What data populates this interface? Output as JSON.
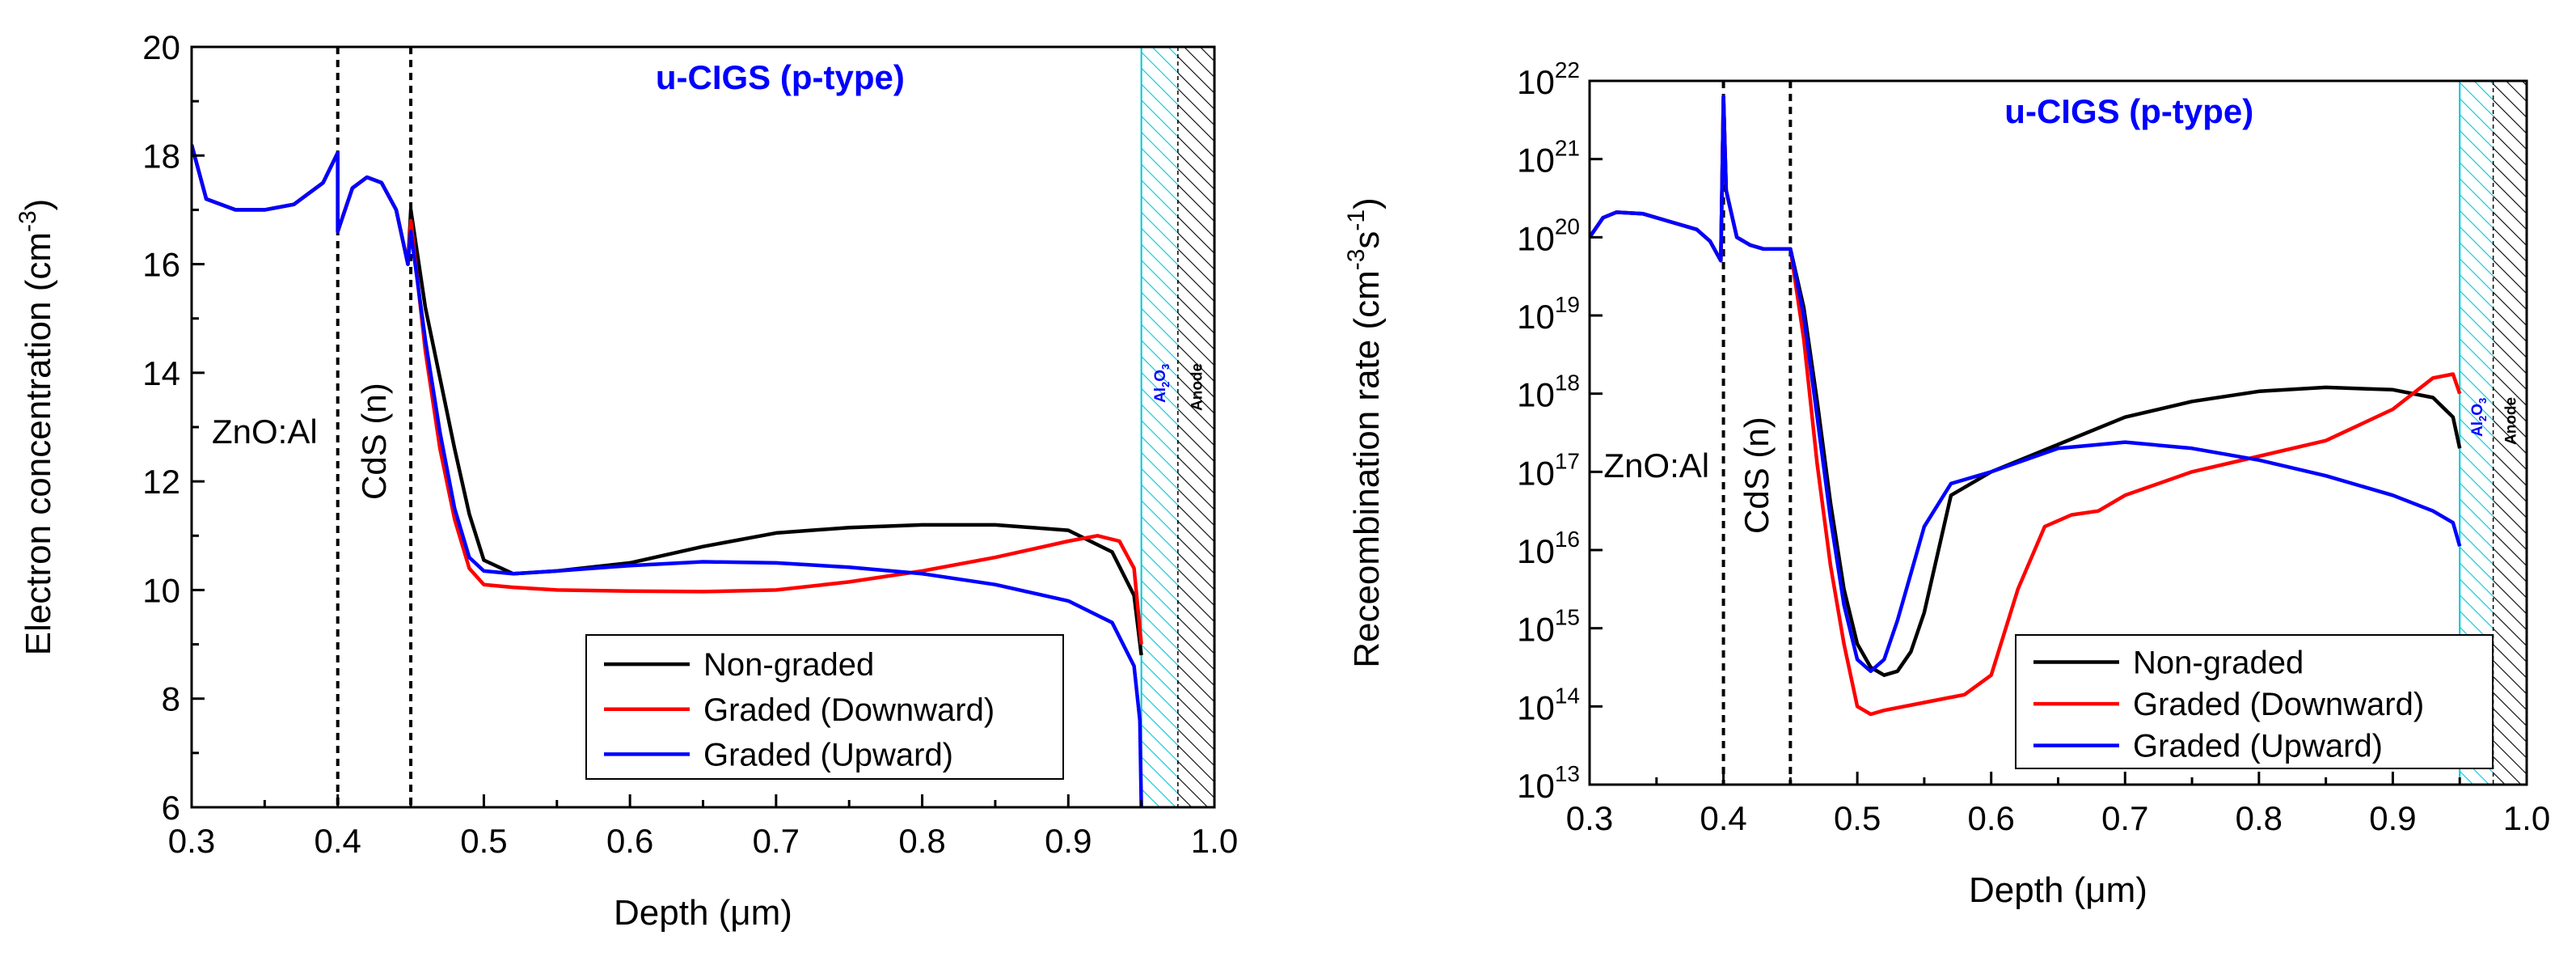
{
  "colors": {
    "non_graded": "#000000",
    "downward": "#ff0000",
    "upward": "#0000ff",
    "al2o3_hatch": "#00c8d8",
    "anode_hatch": "#000000",
    "label_blue": "#0000ff"
  },
  "chart_data": [
    {
      "type": "line",
      "id": "left",
      "title": "",
      "xlabel": "Depth (μm)",
      "ylabel": "Electron concentration (cm",
      "ylabel_sup": "-3",
      "ylabel_tail": ")",
      "xlim": [
        0.3,
        1.0
      ],
      "ylim": [
        6,
        20
      ],
      "xticks": [
        0.3,
        0.4,
        0.5,
        0.6,
        0.7,
        0.8,
        0.9,
        1.0
      ],
      "xtick_labels": [
        "0.3",
        "0.4",
        "0.5",
        "0.6",
        "0.7",
        "0.8",
        "0.9",
        "1.0"
      ],
      "yticks": [
        6,
        8,
        10,
        12,
        14,
        16,
        18,
        20
      ],
      "ytick_labels": [
        "6",
        "8",
        "10",
        "12",
        "14",
        "16",
        "18",
        "20"
      ],
      "ytick_exponents": [],
      "region_label": "u-CIGS (p-type)",
      "layer_labels": {
        "zno": "ZnO:Al",
        "cds": "CdS (n)",
        "al2o3_base": "Al",
        "al2o3_sub1": "2",
        "al2o3_mid": "O",
        "al2o3_sub2": "3",
        "anode": "Anode"
      },
      "boundaries": [
        0.4,
        0.45
      ],
      "al2o3_range": [
        0.95,
        0.975
      ],
      "anode_range": [
        0.975,
        1.0
      ],
      "legend": [
        "Non-graded",
        "Graded (Downward)",
        "Graded (Upward)"
      ],
      "series": [
        {
          "name": "Non-graded",
          "x": [
            0.3,
            0.31,
            0.33,
            0.35,
            0.37,
            0.39,
            0.4,
            0.4,
            0.41,
            0.42,
            0.43,
            0.44,
            0.448,
            0.45,
            0.46,
            0.47,
            0.48,
            0.49,
            0.5,
            0.52,
            0.55,
            0.6,
            0.65,
            0.7,
            0.75,
            0.8,
            0.85,
            0.9,
            0.93,
            0.945,
            0.95
          ],
          "y": [
            18.2,
            17.2,
            17.0,
            17.0,
            17.1,
            17.5,
            18.05,
            16.6,
            17.4,
            17.6,
            17.5,
            17.0,
            16.0,
            17.0,
            15.2,
            13.9,
            12.6,
            11.4,
            10.55,
            10.3,
            10.35,
            10.5,
            10.8,
            11.05,
            11.15,
            11.2,
            11.2,
            11.1,
            10.7,
            9.9,
            8.8
          ]
        },
        {
          "name": "Graded (Downward)",
          "x": [
            0.3,
            0.31,
            0.33,
            0.35,
            0.37,
            0.39,
            0.4,
            0.4,
            0.41,
            0.42,
            0.43,
            0.44,
            0.448,
            0.45,
            0.46,
            0.47,
            0.48,
            0.49,
            0.5,
            0.52,
            0.55,
            0.6,
            0.65,
            0.7,
            0.75,
            0.8,
            0.85,
            0.9,
            0.92,
            0.935,
            0.945,
            0.95
          ],
          "y": [
            18.2,
            17.2,
            17.0,
            17.0,
            17.1,
            17.5,
            18.05,
            16.6,
            17.4,
            17.6,
            17.5,
            17.0,
            16.0,
            16.8,
            14.4,
            12.6,
            11.3,
            10.4,
            10.1,
            10.05,
            10.0,
            9.98,
            9.97,
            10.0,
            10.15,
            10.35,
            10.6,
            10.9,
            11.0,
            10.9,
            10.4,
            9.0
          ]
        },
        {
          "name": "Graded (Upward)",
          "x": [
            0.3,
            0.31,
            0.33,
            0.35,
            0.37,
            0.39,
            0.4,
            0.4,
            0.41,
            0.42,
            0.43,
            0.44,
            0.448,
            0.45,
            0.46,
            0.47,
            0.48,
            0.49,
            0.5,
            0.52,
            0.55,
            0.6,
            0.65,
            0.7,
            0.75,
            0.8,
            0.85,
            0.9,
            0.93,
            0.945,
            0.949,
            0.95
          ],
          "y": [
            18.2,
            17.2,
            17.0,
            17.0,
            17.1,
            17.5,
            18.05,
            16.6,
            17.4,
            17.6,
            17.5,
            17.0,
            16.0,
            16.6,
            14.6,
            12.9,
            11.5,
            10.6,
            10.35,
            10.3,
            10.35,
            10.45,
            10.52,
            10.5,
            10.42,
            10.3,
            10.1,
            9.8,
            9.4,
            8.6,
            7.6,
            6.0
          ]
        }
      ]
    },
    {
      "type": "line",
      "id": "right",
      "title": "",
      "xlabel": "Depth (μm)",
      "ylabel": "Receombination rate (cm",
      "ylabel_sup": "-3",
      "ylabel_mid": "s",
      "ylabel_sup2": "-1",
      "ylabel_tail": ")",
      "yscale": "log",
      "xlim": [
        0.3,
        1.0
      ],
      "ylim": [
        13,
        22
      ],
      "xticks": [
        0.3,
        0.4,
        0.5,
        0.6,
        0.7,
        0.8,
        0.9,
        1.0
      ],
      "xtick_labels": [
        "0.3",
        "0.4",
        "0.5",
        "0.6",
        "0.7",
        "0.8",
        "0.9",
        "1.0"
      ],
      "yticks": [
        13,
        14,
        15,
        16,
        17,
        18,
        19,
        20,
        21,
        22
      ],
      "ytick_labels": [
        "10",
        "10",
        "10",
        "10",
        "10",
        "10",
        "10",
        "10",
        "10",
        "10"
      ],
      "ytick_exponents": [
        "13",
        "14",
        "15",
        "16",
        "17",
        "18",
        "19",
        "20",
        "21",
        "22"
      ],
      "region_label": "u-CIGS (p-type)",
      "layer_labels": {
        "zno": "ZnO:Al",
        "cds": "CdS (n)",
        "al2o3_base": "Al",
        "al2o3_sub1": "2",
        "al2o3_mid": "O",
        "al2o3_sub2": "3",
        "anode": "Anode"
      },
      "boundaries": [
        0.4,
        0.45
      ],
      "al2o3_range": [
        0.95,
        0.975
      ],
      "anode_range": [
        0.975,
        1.0
      ],
      "legend": [
        "Non-graded",
        "Graded (Downward)",
        "Graded (Upward)"
      ],
      "series": [
        {
          "name": "Non-graded",
          "x": [
            0.3,
            0.31,
            0.32,
            0.34,
            0.36,
            0.38,
            0.39,
            0.398,
            0.4,
            0.402,
            0.41,
            0.42,
            0.43,
            0.44,
            0.45,
            0.46,
            0.47,
            0.48,
            0.49,
            0.5,
            0.51,
            0.52,
            0.53,
            0.54,
            0.55,
            0.57,
            0.6,
            0.65,
            0.7,
            0.75,
            0.8,
            0.85,
            0.9,
            0.93,
            0.945,
            0.95
          ],
          "y": [
            20.0,
            20.25,
            20.32,
            20.3,
            20.2,
            20.1,
            19.95,
            19.7,
            21.8,
            20.6,
            20.0,
            19.9,
            19.85,
            19.85,
            19.85,
            19.1,
            17.9,
            16.6,
            15.5,
            14.8,
            14.5,
            14.4,
            14.45,
            14.7,
            15.2,
            16.7,
            17.0,
            17.35,
            17.7,
            17.9,
            18.03,
            18.08,
            18.05,
            17.95,
            17.7,
            17.3
          ]
        },
        {
          "name": "Graded (Downward)",
          "x": [
            0.3,
            0.31,
            0.32,
            0.34,
            0.36,
            0.38,
            0.39,
            0.398,
            0.4,
            0.402,
            0.41,
            0.42,
            0.43,
            0.44,
            0.45,
            0.46,
            0.47,
            0.48,
            0.49,
            0.5,
            0.51,
            0.52,
            0.55,
            0.58,
            0.6,
            0.62,
            0.64,
            0.66,
            0.68,
            0.7,
            0.75,
            0.8,
            0.85,
            0.9,
            0.93,
            0.945,
            0.95
          ],
          "y": [
            20.0,
            20.25,
            20.32,
            20.3,
            20.2,
            20.1,
            19.95,
            19.7,
            21.8,
            20.6,
            20.0,
            19.9,
            19.85,
            19.85,
            19.85,
            18.7,
            17.1,
            15.8,
            14.8,
            14.0,
            13.9,
            13.95,
            14.05,
            14.15,
            14.4,
            15.5,
            16.3,
            16.45,
            16.5,
            16.7,
            17.0,
            17.2,
            17.4,
            17.8,
            18.2,
            18.25,
            18.0
          ]
        },
        {
          "name": "Graded (Upward)",
          "x": [
            0.3,
            0.31,
            0.32,
            0.34,
            0.36,
            0.38,
            0.39,
            0.398,
            0.4,
            0.402,
            0.41,
            0.42,
            0.43,
            0.44,
            0.45,
            0.46,
            0.47,
            0.48,
            0.49,
            0.5,
            0.51,
            0.52,
            0.53,
            0.54,
            0.55,
            0.57,
            0.6,
            0.65,
            0.7,
            0.75,
            0.8,
            0.85,
            0.9,
            0.93,
            0.945,
            0.95
          ],
          "y": [
            20.0,
            20.25,
            20.32,
            20.3,
            20.2,
            20.1,
            19.95,
            19.7,
            21.8,
            20.6,
            20.0,
            19.9,
            19.85,
            19.85,
            19.85,
            19.0,
            17.7,
            16.4,
            15.3,
            14.6,
            14.45,
            14.6,
            15.1,
            15.7,
            16.3,
            16.85,
            17.0,
            17.3,
            17.38,
            17.3,
            17.15,
            16.95,
            16.7,
            16.5,
            16.35,
            16.05
          ]
        }
      ]
    }
  ]
}
